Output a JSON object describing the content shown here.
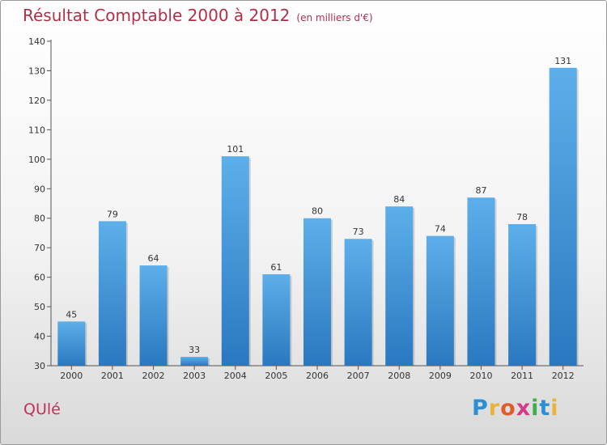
{
  "page": {
    "title": "Résultat Comptable 2000 à 2012",
    "unit": "(en milliers d'€)",
    "commune": "QUlé",
    "logo": [
      "P",
      "r",
      "o",
      "x",
      "i",
      "t",
      "i"
    ],
    "logo_colors": [
      "#2b8fd6",
      "#e8b33a",
      "#e15c2a",
      "#d83a8a",
      "#3cae4a",
      "#2b8fd6",
      "#e8b33a"
    ]
  },
  "chart_data": {
    "type": "bar",
    "title": "Résultat Comptable 2000 à 2012",
    "subtitle": "(en milliers d'€)",
    "categories": [
      "2000",
      "2001",
      "2002",
      "2003",
      "2004",
      "2005",
      "2006",
      "2007",
      "2008",
      "2009",
      "2010",
      "2011",
      "2012"
    ],
    "values": [
      45,
      79,
      64,
      33,
      101,
      61,
      80,
      73,
      84,
      74,
      87,
      78,
      131
    ],
    "ylim": [
      30,
      140
    ],
    "yticks": [
      30,
      40,
      50,
      60,
      70,
      80,
      90,
      100,
      110,
      120,
      130,
      140
    ],
    "xlabel": "",
    "ylabel": "",
    "grid": false,
    "bar_color": "#4a9fe0"
  }
}
